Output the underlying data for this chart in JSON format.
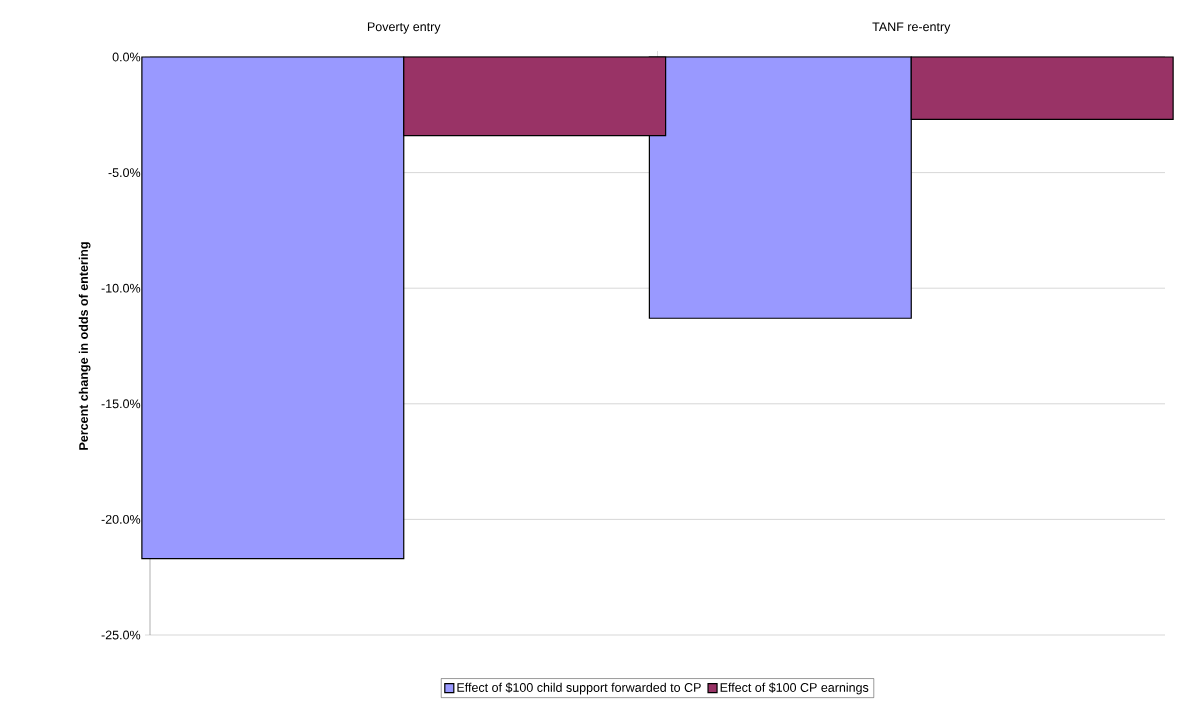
{
  "chart_data": {
    "type": "bar",
    "ylabel": "Percent change in odds of entering",
    "categories": [
      "Poverty entry",
      "TANF re-entry"
    ],
    "series": [
      {
        "name": "Effect of $100 child support forwarded to CP",
        "color": "#9999ff",
        "values": [
          -21.7,
          -11.3
        ]
      },
      {
        "name": "Effect of $100 CP earnings",
        "color": "#993366",
        "values": [
          -3.4,
          -2.7
        ]
      }
    ],
    "ylim": [
      -25,
      0
    ],
    "yticks": [
      {
        "value": -25,
        "label": "-25.0%"
      },
      {
        "value": -20,
        "label": "-20.0%"
      },
      {
        "value": -15,
        "label": "-15.0%"
      },
      {
        "value": -10,
        "label": "-10.0%"
      },
      {
        "value": -5,
        "label": "-5.0%"
      },
      {
        "value": 0,
        "label": "0.0%"
      }
    ],
    "grid": "y",
    "legend": "bottom"
  }
}
